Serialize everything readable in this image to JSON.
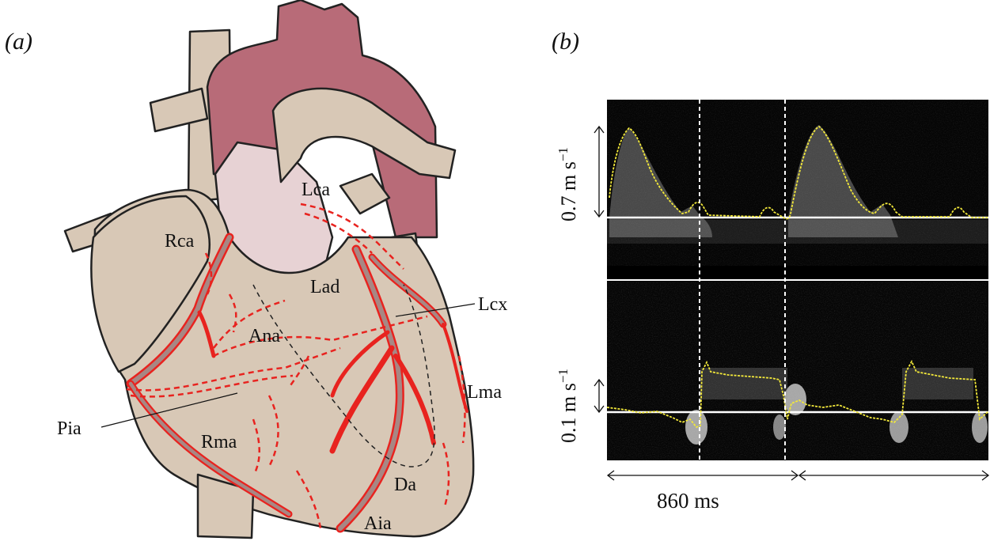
{
  "panel_a": {
    "label": "(a)",
    "vessels": {
      "lca": "Lca",
      "rca": "Rca",
      "lad": "Lad",
      "lcx": "Lcx",
      "ana": "Ana",
      "pia": "Pia",
      "lma": "Lma",
      "rma": "Rma",
      "da": "Da",
      "aia": "Aia"
    }
  },
  "panel_b": {
    "label": "(b)",
    "top_scale": "0.7 m s",
    "bottom_scale": "0.1 m s",
    "scale_exponent": "−1",
    "time_span": "860 ms"
  },
  "colors": {
    "heart_tissue": "#d8c8b6",
    "aorta": "#b86b78",
    "pulmonary": "#e7d2d4",
    "vessel_outline": "#e8231f",
    "vessel_fill": "#a78784",
    "trace": "#f2e83a"
  }
}
